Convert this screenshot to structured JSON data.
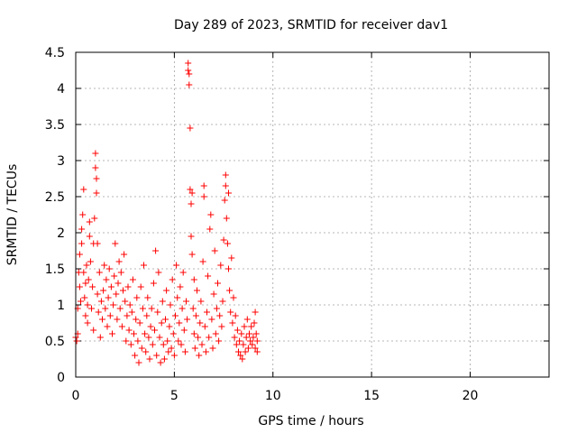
{
  "chart_data": {
    "type": "scatter",
    "title": "Day 289 of 2023, SRMTID for receiver dav1",
    "xlabel": "GPS time / hours",
    "ylabel": "SRMTID / TECUs",
    "xlim": [
      0,
      24
    ],
    "ylim": [
      0,
      4.5
    ],
    "xticks": [
      0,
      5,
      10,
      15,
      20
    ],
    "xtick_labels": [
      "0",
      "5",
      "10",
      "15",
      "20"
    ],
    "yticks": [
      0,
      0.5,
      1,
      1.5,
      2,
      2.5,
      3,
      3.5,
      4,
      4.5
    ],
    "ytick_labels": [
      "0",
      "0.5",
      "1",
      "1.5",
      "2",
      "2.5",
      "3",
      "3.5",
      "4",
      "4.5"
    ],
    "grid": true,
    "marker": "+",
    "color": "#ff0000",
    "series": [
      {
        "name": "SRMTID",
        "points": [
          [
            0.0,
            0.55
          ],
          [
            0.05,
            0.5
          ],
          [
            0.1,
            0.6
          ],
          [
            0.1,
            0.95
          ],
          [
            0.15,
            1.45
          ],
          [
            0.2,
            1.7
          ],
          [
            0.2,
            1.25
          ],
          [
            0.25,
            1.05
          ],
          [
            0.3,
            2.05
          ],
          [
            0.3,
            1.85
          ],
          [
            0.35,
            2.25
          ],
          [
            0.4,
            2.6
          ],
          [
            0.4,
            1.45
          ],
          [
            0.45,
            1.1
          ],
          [
            0.5,
            0.85
          ],
          [
            0.5,
            1.3
          ],
          [
            0.55,
            1.55
          ],
          [
            0.6,
            1.0
          ],
          [
            0.6,
            0.75
          ],
          [
            0.65,
            1.35
          ],
          [
            0.7,
            1.95
          ],
          [
            0.7,
            2.15
          ],
          [
            0.75,
            1.6
          ],
          [
            0.8,
            0.95
          ],
          [
            0.85,
            1.25
          ],
          [
            0.9,
            0.65
          ],
          [
            0.9,
            1.85
          ],
          [
            0.95,
            2.2
          ],
          [
            1.0,
            3.1
          ],
          [
            1.0,
            2.9
          ],
          [
            1.05,
            2.75
          ],
          [
            1.05,
            2.55
          ],
          [
            1.1,
            1.85
          ],
          [
            1.1,
            1.15
          ],
          [
            1.15,
            0.9
          ],
          [
            1.2,
            1.45
          ],
          [
            1.25,
            0.55
          ],
          [
            1.3,
            1.05
          ],
          [
            1.35,
            0.8
          ],
          [
            1.4,
            1.2
          ],
          [
            1.45,
            1.55
          ],
          [
            1.5,
            0.95
          ],
          [
            1.55,
            1.35
          ],
          [
            1.6,
            0.7
          ],
          [
            1.65,
            1.1
          ],
          [
            1.7,
            1.5
          ],
          [
            1.75,
            0.85
          ],
          [
            1.8,
            1.25
          ],
          [
            1.85,
            0.6
          ],
          [
            1.9,
            1.0
          ],
          [
            1.95,
            1.4
          ],
          [
            2.0,
            1.85
          ],
          [
            2.05,
            1.15
          ],
          [
            2.1,
            0.8
          ],
          [
            2.15,
            1.3
          ],
          [
            2.2,
            1.6
          ],
          [
            2.25,
            0.95
          ],
          [
            2.3,
            1.45
          ],
          [
            2.35,
            0.7
          ],
          [
            2.4,
            1.2
          ],
          [
            2.45,
            1.7
          ],
          [
            2.5,
            1.05
          ],
          [
            2.55,
            0.5
          ],
          [
            2.6,
            0.85
          ],
          [
            2.65,
            1.25
          ],
          [
            2.7,
            0.65
          ],
          [
            2.75,
            1.0
          ],
          [
            2.8,
            0.45
          ],
          [
            2.85,
            0.9
          ],
          [
            2.9,
            1.35
          ],
          [
            2.95,
            0.6
          ],
          [
            3.0,
            0.3
          ],
          [
            3.05,
            0.8
          ],
          [
            3.1,
            1.1
          ],
          [
            3.15,
            0.5
          ],
          [
            3.2,
            0.2
          ],
          [
            3.25,
            0.75
          ],
          [
            3.3,
            1.25
          ],
          [
            3.35,
            0.4
          ],
          [
            3.4,
            0.95
          ],
          [
            3.45,
            1.55
          ],
          [
            3.5,
            0.6
          ],
          [
            3.55,
            0.35
          ],
          [
            3.6,
            0.85
          ],
          [
            3.65,
            1.1
          ],
          [
            3.7,
            0.55
          ],
          [
            3.75,
            0.25
          ],
          [
            3.8,
            0.7
          ],
          [
            3.85,
            0.95
          ],
          [
            3.9,
            0.45
          ],
          [
            3.95,
            1.3
          ],
          [
            4.0,
            0.65
          ],
          [
            4.05,
            1.75
          ],
          [
            4.1,
            0.3
          ],
          [
            4.15,
            0.9
          ],
          [
            4.2,
            1.45
          ],
          [
            4.25,
            0.55
          ],
          [
            4.3,
            0.2
          ],
          [
            4.35,
            0.75
          ],
          [
            4.4,
            1.05
          ],
          [
            4.45,
            0.45
          ],
          [
            4.5,
            0.25
          ],
          [
            4.55,
            0.8
          ],
          [
            4.6,
            1.2
          ],
          [
            4.65,
            0.5
          ],
          [
            4.7,
            0.35
          ],
          [
            4.75,
            0.7
          ],
          [
            4.8,
            1.0
          ],
          [
            4.85,
            0.4
          ],
          [
            4.9,
            1.35
          ],
          [
            4.95,
            0.6
          ],
          [
            5.0,
            0.3
          ],
          [
            5.05,
            0.85
          ],
          [
            5.1,
            1.55
          ],
          [
            5.15,
            1.1
          ],
          [
            5.2,
            0.5
          ],
          [
            5.25,
            0.75
          ],
          [
            5.3,
            1.25
          ],
          [
            5.35,
            0.45
          ],
          [
            5.4,
            0.95
          ],
          [
            5.45,
            1.45
          ],
          [
            5.5,
            0.65
          ],
          [
            5.55,
            0.35
          ],
          [
            5.6,
            1.05
          ],
          [
            5.65,
            0.8
          ],
          [
            5.7,
            4.35
          ],
          [
            5.7,
            4.25
          ],
          [
            5.75,
            4.2
          ],
          [
            5.75,
            4.05
          ],
          [
            5.8,
            3.45
          ],
          [
            5.8,
            2.6
          ],
          [
            5.85,
            2.4
          ],
          [
            5.85,
            1.95
          ],
          [
            5.9,
            2.55
          ],
          [
            5.9,
            1.7
          ],
          [
            5.95,
            0.95
          ],
          [
            6.0,
            1.35
          ],
          [
            6.0,
            0.6
          ],
          [
            6.05,
            0.4
          ],
          [
            6.1,
            0.85
          ],
          [
            6.15,
            1.2
          ],
          [
            6.2,
            0.55
          ],
          [
            6.25,
            0.3
          ],
          [
            6.3,
            0.75
          ],
          [
            6.35,
            1.05
          ],
          [
            6.4,
            0.45
          ],
          [
            6.45,
            1.6
          ],
          [
            6.5,
            2.65
          ],
          [
            6.5,
            2.5
          ],
          [
            6.55,
            0.7
          ],
          [
            6.6,
            0.35
          ],
          [
            6.65,
            0.9
          ],
          [
            6.7,
            1.4
          ],
          [
            6.75,
            0.55
          ],
          [
            6.8,
            2.05
          ],
          [
            6.85,
            2.25
          ],
          [
            6.9,
            0.8
          ],
          [
            6.95,
            0.4
          ],
          [
            7.0,
            1.15
          ],
          [
            7.05,
            1.75
          ],
          [
            7.1,
            0.6
          ],
          [
            7.15,
            0.95
          ],
          [
            7.2,
            1.3
          ],
          [
            7.25,
            0.5
          ],
          [
            7.3,
            0.85
          ],
          [
            7.35,
            1.55
          ],
          [
            7.4,
            0.7
          ],
          [
            7.45,
            1.05
          ],
          [
            7.5,
            1.9
          ],
          [
            7.55,
            2.45
          ],
          [
            7.6,
            2.8
          ],
          [
            7.6,
            2.65
          ],
          [
            7.65,
            2.2
          ],
          [
            7.7,
            1.85
          ],
          [
            7.75,
            1.5
          ],
          [
            7.75,
            2.55
          ],
          [
            7.8,
            1.2
          ],
          [
            7.85,
            0.9
          ],
          [
            7.9,
            1.65
          ],
          [
            7.95,
            0.75
          ],
          [
            8.0,
            1.1
          ],
          [
            8.05,
            0.55
          ],
          [
            8.1,
            0.85
          ],
          [
            8.15,
            0.45
          ],
          [
            8.2,
            0.65
          ],
          [
            8.25,
            0.35
          ],
          [
            8.3,
            0.5
          ],
          [
            8.35,
            0.3
          ],
          [
            8.4,
            0.6
          ],
          [
            8.45,
            0.25
          ],
          [
            8.5,
            0.45
          ],
          [
            8.55,
            0.7
          ],
          [
            8.6,
            0.35
          ],
          [
            8.65,
            0.55
          ],
          [
            8.7,
            0.8
          ],
          [
            8.75,
            0.4
          ],
          [
            8.8,
            0.6
          ],
          [
            8.85,
            0.5
          ],
          [
            8.9,
            0.7
          ],
          [
            8.95,
            0.45
          ],
          [
            9.0,
            0.55
          ],
          [
            9.05,
            0.75
          ],
          [
            9.1,
            0.4
          ],
          [
            9.1,
            0.9
          ],
          [
            9.15,
            0.6
          ],
          [
            9.2,
            0.35
          ],
          [
            9.2,
            0.5
          ]
        ]
      }
    ]
  }
}
